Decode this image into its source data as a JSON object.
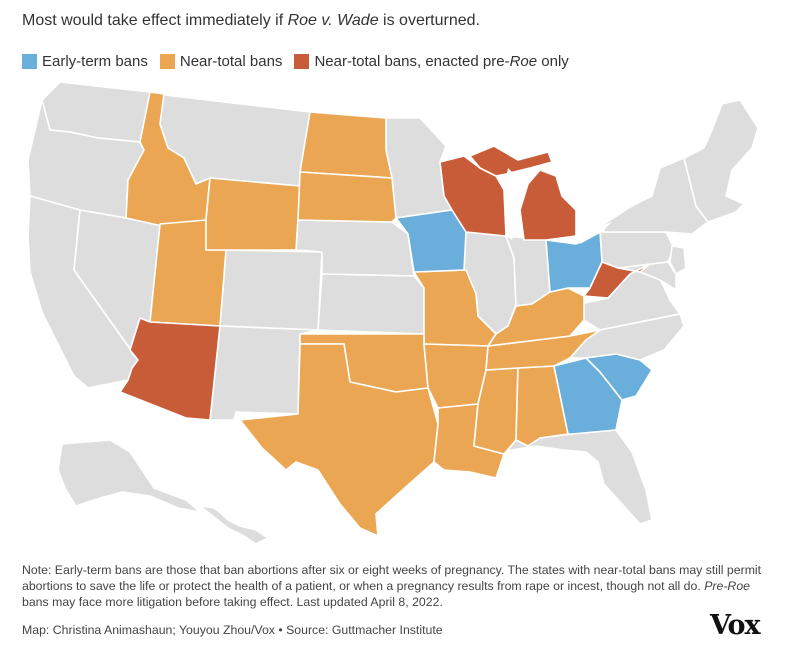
{
  "title": {
    "prefix": "Most would take effect immediately if ",
    "case_name": "Roe v. Wade",
    "suffix": " is overturned."
  },
  "legend": [
    {
      "label": "Early-term bans",
      "color": "#6aaedb"
    },
    {
      "label": "Near-total bans",
      "color": "#eba653"
    },
    {
      "label_prefix": "Near-total bans, enacted pre-",
      "label_italic": "Roe",
      "label_suffix": " only",
      "color": "#c95c38"
    }
  ],
  "colors": {
    "none": "#dddddd",
    "early_term": "#6aaedb",
    "near_total": "#eba653",
    "pre_roe": "#c95c38"
  },
  "states": {
    "early_term": [
      "Iowa",
      "Ohio",
      "Georgia",
      "South Carolina"
    ],
    "near_total": [
      "Idaho",
      "Utah",
      "Wyoming",
      "North Dakota",
      "South Dakota",
      "Missouri",
      "Oklahoma",
      "Texas",
      "Arkansas",
      "Louisiana",
      "Mississippi",
      "Alabama",
      "Tennessee",
      "Kentucky"
    ],
    "pre_roe_only": [
      "Arizona",
      "Wisconsin",
      "Michigan",
      "West Virginia"
    ]
  },
  "note": {
    "part1": "Note: Early-term bans are those that ban abortions after six or eight weeks of pregnancy. The states with near-total bans may still permit abortions to save the life or protect the health of a patient, or when a pregnancy results from rape or incest, though not all do. ",
    "italic": "Pre-Roe",
    "part2": " bans may face more litigation before taking effect. Last updated April 8, 2022."
  },
  "credit": "Map: Christina Animashaun; Youyou Zhou/Vox • Source: Guttmacher Institute",
  "logo": "Vox"
}
